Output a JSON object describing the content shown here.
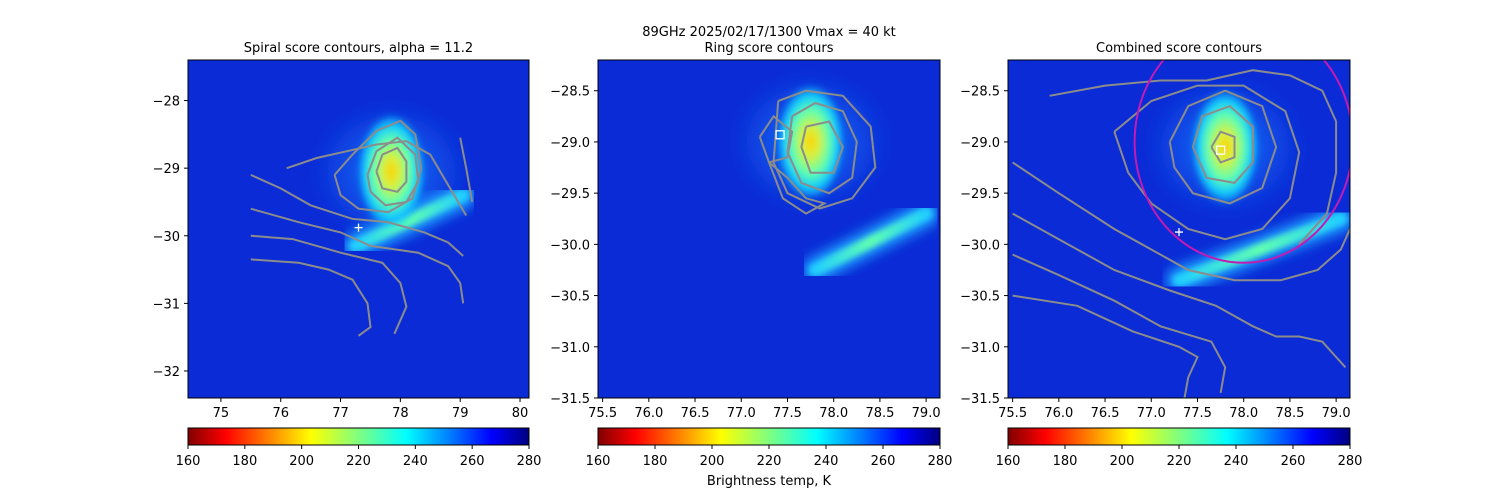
{
  "figure": {
    "suptitle_line1": "89GHz  2025/02/17/1300    Vmax = 40 kt",
    "colorbar_label": "Brightness temp, K"
  },
  "colors": {
    "contour": "#8c8c8c",
    "ring_circle": "#c41ab4",
    "cross_marker": "#ffffff",
    "background_cold": "#0a2bd6"
  },
  "chart_data": [
    {
      "type": "heatmap",
      "title": "Spiral score contours, alpha = 11.2",
      "xlim": [
        74.45,
        80.15
      ],
      "ylim": [
        -32.4,
        -27.4
      ],
      "xticks": [
        "75",
        "76",
        "77",
        "78",
        "79",
        "80"
      ],
      "xtick_values": [
        75,
        76,
        77,
        78,
        79,
        80
      ],
      "yticks": [
        "−28",
        "−29",
        "−30",
        "−31",
        "−32"
      ],
      "ytick_values": [
        -28,
        -29,
        -30,
        -31,
        -32
      ],
      "colormap": "jet_r",
      "clim": [
        160,
        280
      ],
      "colorbar_ticks": [
        "160",
        "180",
        "200",
        "220",
        "240",
        "260",
        "280"
      ],
      "eye_marker": {
        "x": 77.3,
        "y": -29.88
      },
      "warm_band": {
        "x1": 77.25,
        "y1": -30.15,
        "x2": 79.05,
        "y2": -29.4
      },
      "cold_core": {
        "x": 77.85,
        "y": -29.05,
        "tb_min": 205
      },
      "contours": [
        [
          [
            75.5,
            -30.35
          ],
          [
            76.3,
            -30.4
          ],
          [
            76.8,
            -30.5
          ],
          [
            77.2,
            -30.65
          ],
          [
            77.45,
            -31.0
          ],
          [
            77.5,
            -31.35
          ],
          [
            77.3,
            -31.48
          ]
        ],
        [
          [
            75.5,
            -30.0
          ],
          [
            76.2,
            -30.05
          ],
          [
            77.0,
            -30.25
          ],
          [
            77.7,
            -30.4
          ],
          [
            78.0,
            -30.7
          ],
          [
            78.1,
            -31.05
          ],
          [
            77.9,
            -31.45
          ]
        ],
        [
          [
            75.5,
            -29.6
          ],
          [
            76.3,
            -29.8
          ],
          [
            77.0,
            -29.95
          ],
          [
            77.5,
            -30.15
          ],
          [
            78.3,
            -30.25
          ],
          [
            78.8,
            -30.45
          ],
          [
            79.0,
            -30.7
          ],
          [
            79.05,
            -31.0
          ]
        ],
        [
          [
            75.5,
            -29.1
          ],
          [
            76.0,
            -29.3
          ],
          [
            76.5,
            -29.55
          ],
          [
            77.2,
            -29.75
          ],
          [
            77.8,
            -29.8
          ],
          [
            78.4,
            -29.95
          ],
          [
            78.8,
            -30.1
          ],
          [
            79.05,
            -30.3
          ]
        ],
        [
          [
            76.1,
            -29.0
          ],
          [
            76.6,
            -28.85
          ],
          [
            77.1,
            -28.75
          ],
          [
            77.6,
            -28.65
          ],
          [
            78.1,
            -28.6
          ],
          [
            78.5,
            -28.8
          ],
          [
            78.8,
            -29.25
          ],
          [
            79.1,
            -29.7
          ]
        ],
        [
          [
            76.9,
            -29.1
          ],
          [
            77.2,
            -28.8
          ],
          [
            77.6,
            -28.45
          ],
          [
            78.0,
            -28.3
          ],
          [
            78.25,
            -28.5
          ],
          [
            78.35,
            -29.0
          ],
          [
            78.2,
            -29.45
          ],
          [
            77.8,
            -29.65
          ],
          [
            77.3,
            -29.6
          ],
          [
            77.0,
            -29.4
          ],
          [
            76.9,
            -29.1
          ]
        ],
        [
          [
            77.45,
            -29.1
          ],
          [
            77.6,
            -28.75
          ],
          [
            77.95,
            -28.55
          ],
          [
            78.25,
            -28.8
          ],
          [
            78.3,
            -29.2
          ],
          [
            78.1,
            -29.5
          ],
          [
            77.75,
            -29.55
          ],
          [
            77.5,
            -29.35
          ],
          [
            77.45,
            -29.1
          ]
        ],
        [
          [
            77.6,
            -29.05
          ],
          [
            77.7,
            -28.8
          ],
          [
            77.95,
            -28.7
          ],
          [
            78.1,
            -28.9
          ],
          [
            78.1,
            -29.2
          ],
          [
            77.95,
            -29.35
          ],
          [
            77.7,
            -29.3
          ],
          [
            77.6,
            -29.05
          ]
        ],
        [
          [
            79.0,
            -28.55
          ],
          [
            79.1,
            -29.0
          ],
          [
            79.2,
            -29.5
          ]
        ]
      ]
    },
    {
      "type": "heatmap",
      "title": "Ring score contours",
      "xlim": [
        75.45,
        79.15
      ],
      "ylim": [
        -31.5,
        -28.2
      ],
      "xticks": [
        "75.5",
        "76.0",
        "76.5",
        "77.0",
        "77.5",
        "78.0",
        "78.5",
        "79.0"
      ],
      "xtick_values": [
        75.5,
        76.0,
        76.5,
        77.0,
        77.5,
        78.0,
        78.5,
        79.0
      ],
      "yticks": [
        "−28.5",
        "−29.0",
        "−29.5",
        "−30.0",
        "−30.5",
        "−31.0",
        "−31.5"
      ],
      "ytick_values": [
        -28.5,
        -29.0,
        -29.5,
        -30.0,
        -30.5,
        -31.0,
        -31.5
      ],
      "colormap": "jet_r",
      "clim": [
        160,
        280
      ],
      "colorbar_ticks": [
        "160",
        "180",
        "200",
        "220",
        "240",
        "260",
        "280"
      ],
      "square_marker": {
        "x": 77.42,
        "y": -28.93
      },
      "warm_band": {
        "x1": 77.8,
        "y1": -30.25,
        "x2": 79.0,
        "y2": -29.7
      },
      "cold_core": {
        "x": 77.75,
        "y": -29.0,
        "tb_min": 195
      },
      "contours": [
        [
          [
            77.4,
            -28.6
          ],
          [
            77.7,
            -28.5
          ],
          [
            78.1,
            -28.55
          ],
          [
            78.4,
            -28.85
          ],
          [
            78.45,
            -29.25
          ],
          [
            78.2,
            -29.55
          ],
          [
            77.85,
            -29.65
          ],
          [
            77.5,
            -29.5
          ],
          [
            77.35,
            -29.2
          ],
          [
            77.4,
            -28.6
          ]
        ],
        [
          [
            77.55,
            -28.75
          ],
          [
            77.8,
            -28.62
          ],
          [
            78.1,
            -28.7
          ],
          [
            78.25,
            -29.0
          ],
          [
            78.2,
            -29.35
          ],
          [
            77.95,
            -29.5
          ],
          [
            77.65,
            -29.4
          ],
          [
            77.5,
            -29.1
          ],
          [
            77.55,
            -28.75
          ]
        ],
        [
          [
            77.7,
            -28.85
          ],
          [
            77.95,
            -28.8
          ],
          [
            78.1,
            -29.05
          ],
          [
            78.0,
            -29.3
          ],
          [
            77.75,
            -29.3
          ],
          [
            77.65,
            -29.05
          ],
          [
            77.7,
            -28.85
          ]
        ],
        [
          [
            77.2,
            -28.95
          ],
          [
            77.35,
            -28.75
          ],
          [
            77.55,
            -28.9
          ],
          [
            77.5,
            -29.15
          ],
          [
            77.3,
            -29.2
          ],
          [
            77.2,
            -28.95
          ]
        ],
        [
          [
            77.3,
            -29.2
          ],
          [
            77.5,
            -29.35
          ],
          [
            77.7,
            -29.55
          ],
          [
            77.9,
            -29.6
          ],
          [
            77.7,
            -29.7
          ],
          [
            77.45,
            -29.55
          ],
          [
            77.3,
            -29.2
          ]
        ]
      ]
    },
    {
      "type": "heatmap",
      "title": "Combined score contours",
      "xlim": [
        75.45,
        79.15
      ],
      "ylim": [
        -31.5,
        -28.2
      ],
      "xticks": [
        "75.5",
        "76.0",
        "76.5",
        "77.0",
        "77.5",
        "78.0",
        "78.5",
        "79.0"
      ],
      "xtick_values": [
        75.5,
        76.0,
        76.5,
        77.0,
        77.5,
        78.0,
        78.5,
        79.0
      ],
      "yticks": [
        "−28.5",
        "−29.0",
        "−29.5",
        "−30.0",
        "−30.5",
        "−31.0",
        "−31.5"
      ],
      "ytick_values": [
        -28.5,
        -29.0,
        -29.5,
        -30.0,
        -30.5,
        -31.0,
        -31.5
      ],
      "colormap": "jet_r",
      "clim": [
        160,
        280
      ],
      "colorbar_ticks": [
        "160",
        "180",
        "200",
        "220",
        "240",
        "260",
        "280"
      ],
      "eye_marker": {
        "x": 77.3,
        "y": -29.88
      },
      "square_marker": {
        "x": 77.75,
        "y": -29.08
      },
      "ring": {
        "cx": 78.0,
        "cy": -29.0,
        "r": 1.18
      },
      "warm_band": {
        "x1": 77.3,
        "y1": -30.35,
        "x2": 79.05,
        "y2": -29.75
      },
      "cold_core": {
        "x": 77.8,
        "y": -29.05,
        "tb_min": 200
      },
      "contours": [
        [
          [
            75.5,
            -30.5
          ],
          [
            76.2,
            -30.6
          ],
          [
            76.8,
            -30.85
          ],
          [
            77.3,
            -31.0
          ],
          [
            77.5,
            -31.1
          ],
          [
            77.4,
            -31.3
          ],
          [
            77.35,
            -31.55
          ]
        ],
        [
          [
            75.5,
            -30.1
          ],
          [
            76.0,
            -30.3
          ],
          [
            76.6,
            -30.55
          ],
          [
            77.1,
            -30.8
          ],
          [
            77.65,
            -30.95
          ],
          [
            77.8,
            -31.2
          ],
          [
            77.75,
            -31.45
          ]
        ],
        [
          [
            75.5,
            -29.7
          ],
          [
            76.0,
            -29.95
          ],
          [
            76.6,
            -30.25
          ],
          [
            77.2,
            -30.45
          ],
          [
            77.7,
            -30.6
          ],
          [
            78.1,
            -30.8
          ],
          [
            78.35,
            -30.9
          ],
          [
            78.6,
            -30.9
          ],
          [
            78.85,
            -30.95
          ],
          [
            79.0,
            -31.1
          ],
          [
            79.1,
            -31.2
          ]
        ],
        [
          [
            75.5,
            -29.2
          ],
          [
            76.0,
            -29.5
          ],
          [
            76.6,
            -29.85
          ],
          [
            77.0,
            -30.05
          ],
          [
            77.4,
            -30.25
          ],
          [
            77.9,
            -30.35
          ],
          [
            78.4,
            -30.35
          ],
          [
            78.8,
            -30.25
          ],
          [
            79.05,
            -30.05
          ],
          [
            79.15,
            -29.85
          ]
        ],
        [
          [
            75.9,
            -28.55
          ],
          [
            76.5,
            -28.45
          ],
          [
            77.1,
            -28.4
          ],
          [
            77.6,
            -28.4
          ],
          [
            78.1,
            -28.3
          ],
          [
            78.5,
            -28.35
          ],
          [
            78.85,
            -28.5
          ],
          [
            79.0,
            -28.8
          ],
          [
            79.0,
            -29.3
          ],
          [
            78.9,
            -29.7
          ],
          [
            78.6,
            -30.0
          ]
        ],
        [
          [
            76.6,
            -28.9
          ],
          [
            77.0,
            -28.6
          ],
          [
            77.5,
            -28.45
          ],
          [
            78.0,
            -28.45
          ],
          [
            78.45,
            -28.7
          ],
          [
            78.6,
            -29.1
          ],
          [
            78.5,
            -29.55
          ],
          [
            78.2,
            -29.85
          ],
          [
            77.8,
            -29.95
          ],
          [
            77.4,
            -29.85
          ],
          [
            77.0,
            -29.6
          ],
          [
            76.75,
            -29.3
          ],
          [
            76.6,
            -28.9
          ]
        ],
        [
          [
            77.2,
            -29.0
          ],
          [
            77.4,
            -28.65
          ],
          [
            77.8,
            -28.5
          ],
          [
            78.2,
            -28.65
          ],
          [
            78.35,
            -29.05
          ],
          [
            78.2,
            -29.45
          ],
          [
            77.85,
            -29.6
          ],
          [
            77.45,
            -29.5
          ],
          [
            77.25,
            -29.25
          ],
          [
            77.2,
            -29.0
          ]
        ],
        [
          [
            77.45,
            -29.05
          ],
          [
            77.55,
            -28.75
          ],
          [
            77.85,
            -28.65
          ],
          [
            78.1,
            -28.85
          ],
          [
            78.1,
            -29.2
          ],
          [
            77.9,
            -29.4
          ],
          [
            77.6,
            -29.35
          ],
          [
            77.45,
            -29.05
          ]
        ],
        [
          [
            77.65,
            -29.05
          ],
          [
            77.75,
            -28.9
          ],
          [
            77.9,
            -28.95
          ],
          [
            77.9,
            -29.15
          ],
          [
            77.75,
            -29.2
          ],
          [
            77.65,
            -29.05
          ]
        ]
      ]
    }
  ]
}
